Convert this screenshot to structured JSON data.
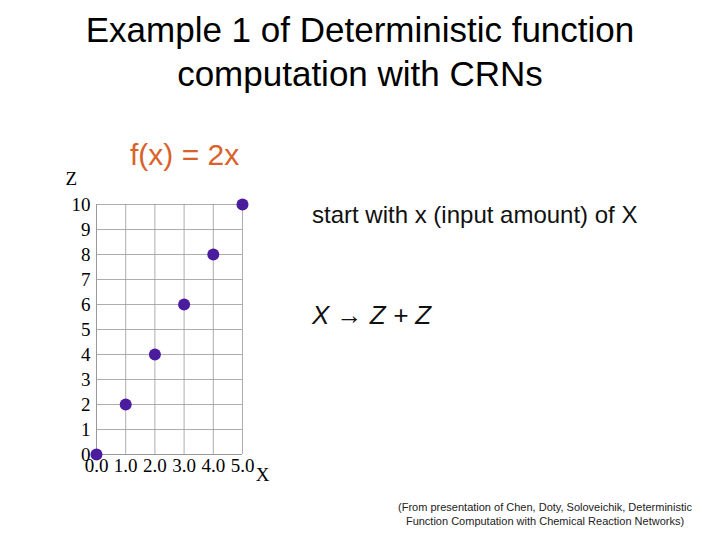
{
  "chart_data": {
    "type": "scatter",
    "title": "Example 1 of Deterministic function computation with CRNs",
    "subtitle": "f(x) = 2x",
    "x_label": "X",
    "y_label": "Z",
    "x": [
      0,
      1,
      2,
      3,
      4,
      5
    ],
    "values": [
      0,
      2,
      4,
      6,
      8,
      10
    ],
    "color": "#4b1c9e",
    "xlim": [
      0,
      5
    ],
    "xticks": [
      0,
      1,
      2,
      3,
      4,
      5
    ],
    "ylim": [
      0,
      10
    ],
    "yticks": [
      0,
      1,
      2,
      3,
      4,
      5,
      6,
      7,
      8,
      9,
      10
    ],
    "grid": true,
    "annotations": [
      "start with x (input amount) of X",
      "X → Z + Z"
    ],
    "caption": "(From presentation of Chen, Doty, Soloveichik, Deterministic Function Computation with Chemical Reaction Networks)"
  }
}
